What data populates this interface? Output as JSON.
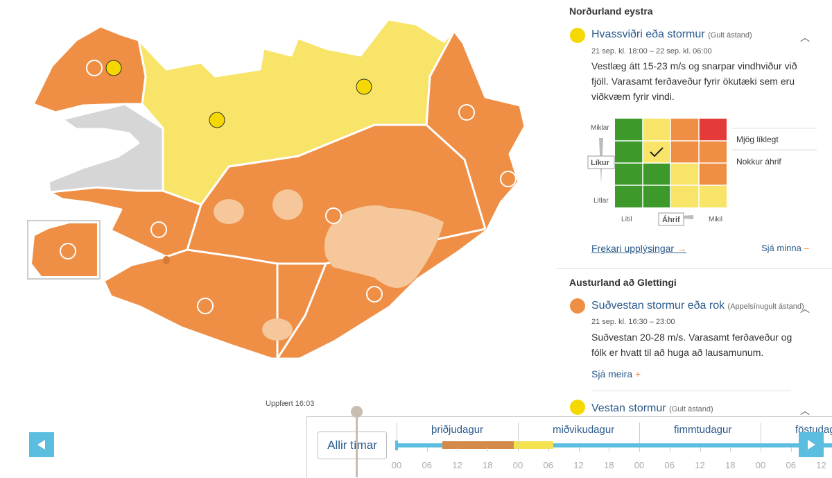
{
  "map": {
    "updated": "Uppfært 16:03"
  },
  "panel": {
    "regions": [
      {
        "name": "Norðurland eystra",
        "warnings": [
          {
            "title": "Hvassviðri eða stormur",
            "level": "(Gult ástand)",
            "time": "21 sep. kl. 18:00 – 22 sep. kl. 06:00",
            "description": "Vestlæg átt 15-23 m/s og snarpar vindhviður við fjöll. Varasamt ferðaveður fyrir ökutæki sem eru viðkvæm fyrir vindi."
          }
        ],
        "matrix": {
          "likelihood_high": "Miklar",
          "likelihood": "Líkur",
          "likelihood_low": "Litlar",
          "impact_low": "Lítil",
          "impact": "Áhrif",
          "impact_high": "Mikil",
          "likelihood_value": "Mjög líklegt",
          "impact_value": "Nokkur áhrif"
        },
        "more_info": "Frekari upplýsingar",
        "show_less": "Sjá minna"
      },
      {
        "name": "Austurland að Glettingi",
        "warnings": [
          {
            "title": "Suðvestan stormur eða rok",
            "level": "(Appelsínugult ástand)",
            "time": "21 sep. kl. 16:30 – 23:00",
            "description": "Suðvestan 20-28 m/s. Varasamt ferðaveður og fólk er hvatt til að huga að lausamunum.",
            "show_more": "Sjá meira"
          },
          {
            "title": "Vestan stormur",
            "level": "(Gult ástand)"
          }
        ]
      }
    ]
  },
  "timeline": {
    "all_times": "Allir tímar",
    "days": [
      "þriðjudagur",
      "miðvikudagur",
      "fimmtudagur",
      "föstudagur"
    ],
    "hours": [
      "00",
      "06",
      "12",
      "18",
      "00",
      "06",
      "12",
      "18",
      "00",
      "06",
      "12",
      "18",
      "00",
      "06",
      "12"
    ]
  }
}
